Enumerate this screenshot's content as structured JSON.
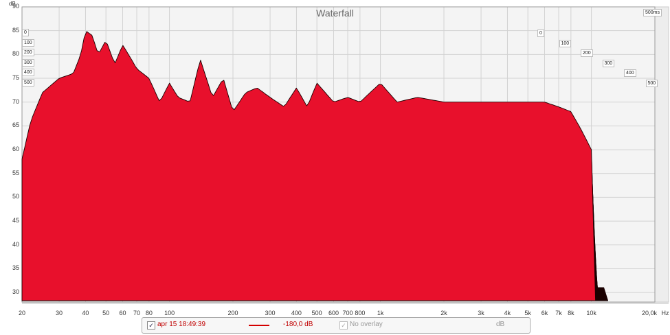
{
  "chart_data": {
    "type": "area",
    "title": "Waterfall",
    "ylabel": "dB",
    "xlabel": "Hz",
    "x_scale": "log",
    "xlim": [
      20,
      20000
    ],
    "ylim": [
      28,
      90
    ],
    "y_ticks": [
      {
        "value": 90,
        "label": "90"
      },
      {
        "value": 85,
        "label": "85"
      },
      {
        "value": 80,
        "label": "80"
      },
      {
        "value": 75,
        "label": "75"
      },
      {
        "value": 70,
        "label": "70"
      },
      {
        "value": 65,
        "label": "65"
      },
      {
        "value": 60,
        "label": "60"
      },
      {
        "value": 55,
        "label": "55"
      },
      {
        "value": 50,
        "label": "50"
      },
      {
        "value": 45,
        "label": "45"
      },
      {
        "value": 40,
        "label": "40"
      },
      {
        "value": 35,
        "label": "35"
      },
      {
        "value": 30,
        "label": "30"
      }
    ],
    "x_ticks": [
      {
        "value": 20,
        "label": "20"
      },
      {
        "value": 30,
        "label": "30"
      },
      {
        "value": 40,
        "label": "40"
      },
      {
        "value": 50,
        "label": "50"
      },
      {
        "value": 60,
        "label": "60"
      },
      {
        "value": 70,
        "label": "70"
      },
      {
        "value": 80,
        "label": "80"
      },
      {
        "value": 100,
        "label": "100"
      },
      {
        "value": 200,
        "label": "200"
      },
      {
        "value": 300,
        "label": "300"
      },
      {
        "value": 400,
        "label": "400"
      },
      {
        "value": 500,
        "label": "500"
      },
      {
        "value": 600,
        "label": "600"
      },
      {
        "value": 700,
        "label": "700"
      },
      {
        "value": 800,
        "label": "800"
      },
      {
        "value": 1000,
        "label": "1k"
      },
      {
        "value": 2000,
        "label": "2k"
      },
      {
        "value": 3000,
        "label": "3k"
      },
      {
        "value": 4000,
        "label": "4k"
      },
      {
        "value": 5000,
        "label": "5k"
      },
      {
        "value": 6000,
        "label": "6k"
      },
      {
        "value": 7000,
        "label": "7k"
      },
      {
        "value": 8000,
        "label": "8k"
      },
      {
        "value": 10000,
        "label": "10k"
      },
      {
        "value": 20000,
        "label": "20,0k"
      }
    ],
    "x_unit_label": "Hz",
    "time_axis_title": "500ms",
    "time_ticks_left": [
      "0",
      "100",
      "200",
      "300",
      "400",
      "500"
    ],
    "time_ticks_right": [
      "0",
      "100",
      "200",
      "300",
      "400",
      "500"
    ],
    "grid": true,
    "fill_color": "#e8102c",
    "outline_color": "#1a0000",
    "front_slice": {
      "name": "0 ms",
      "points": [
        [
          20,
          58
        ],
        [
          22,
          66
        ],
        [
          25,
          72
        ],
        [
          30,
          75
        ],
        [
          35,
          76
        ],
        [
          38,
          80
        ],
        [
          40,
          85
        ],
        [
          43,
          84
        ],
        [
          46,
          80
        ],
        [
          50,
          83
        ],
        [
          55,
          78
        ],
        [
          60,
          82
        ],
        [
          66,
          79
        ],
        [
          70,
          77
        ],
        [
          80,
          75
        ],
        [
          90,
          70
        ],
        [
          100,
          74
        ],
        [
          110,
          71
        ],
        [
          125,
          70
        ],
        [
          140,
          79
        ],
        [
          160,
          71
        ],
        [
          180,
          75
        ],
        [
          200,
          68
        ],
        [
          230,
          72
        ],
        [
          260,
          73
        ],
        [
          300,
          71
        ],
        [
          350,
          69
        ],
        [
          400,
          73
        ],
        [
          450,
          69
        ],
        [
          500,
          74
        ],
        [
          600,
          70
        ],
        [
          700,
          71
        ],
        [
          800,
          70
        ],
        [
          1000,
          74
        ],
        [
          1200,
          70
        ],
        [
          1500,
          71
        ],
        [
          2000,
          70
        ],
        [
          2500,
          70
        ],
        [
          3000,
          70
        ],
        [
          4000,
          70
        ],
        [
          5000,
          70
        ],
        [
          6000,
          70
        ],
        [
          7000,
          69
        ],
        [
          8000,
          68
        ],
        [
          9000,
          64
        ],
        [
          10000,
          60
        ]
      ]
    }
  },
  "legend": {
    "measurement_label": "apr 15 18:49:39",
    "measurement_checked": "✓",
    "line_value": "-180,0 dB",
    "overlay_label": "No overlay",
    "overlay_checked": "✓",
    "unit": "dB"
  }
}
